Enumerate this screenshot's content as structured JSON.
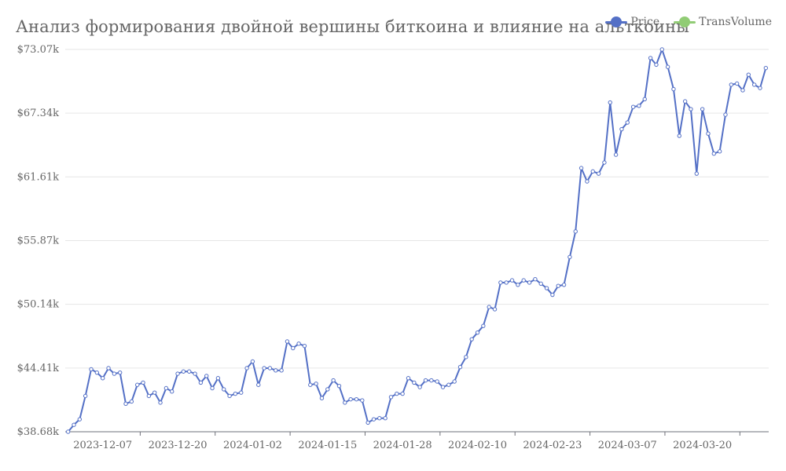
{
  "chart_data": {
    "type": "line",
    "title": "Анализ формирования двойной вершины биткоина и влияние на альткоины",
    "legend": [
      {
        "name": "Price",
        "color": "#5470c6"
      },
      {
        "name": "TransVolume",
        "color": "#91cc75"
      }
    ],
    "legend_position": "top-right",
    "ylim": [
      38680,
      73070
    ],
    "y_ticks": [
      "$38.68k",
      "$44.41k",
      "$50.14k",
      "$55.87k",
      "$61.61k",
      "$67.34k",
      "$73.07k"
    ],
    "x_ticks": [
      "2023-12-07",
      "2023-12-20",
      "2024-01-02",
      "2024-01-15",
      "2024-01-28",
      "2024-02-10",
      "2024-02-23",
      "2024-03-07",
      "2024-03-20"
    ],
    "grid": "horizontal",
    "series": [
      {
        "name": "Price",
        "color": "#5470c6",
        "values": [
          38680,
          39300,
          39800,
          41900,
          44300,
          44000,
          43500,
          44400,
          43900,
          44000,
          41200,
          41400,
          42900,
          43100,
          41900,
          42200,
          41300,
          42600,
          42300,
          43900,
          44100,
          44100,
          43900,
          43100,
          43700,
          42600,
          43500,
          42500,
          41900,
          42100,
          42200,
          44400,
          45000,
          42900,
          44400,
          44400,
          44200,
          44200,
          46800,
          46200,
          46600,
          46400,
          42900,
          43000,
          41700,
          42500,
          43300,
          42800,
          41300,
          41600,
          41600,
          41500,
          39500,
          39800,
          39900,
          39900,
          41800,
          42100,
          42100,
          43500,
          43100,
          42700,
          43300,
          43300,
          43200,
          42700,
          42900,
          43200,
          44500,
          45400,
          47000,
          47600,
          48200,
          49900,
          49700,
          52100,
          52100,
          52300,
          51900,
          52300,
          52100,
          52400,
          52000,
          51600,
          51000,
          51800,
          51900,
          54400,
          56700,
          62400,
          61200,
          62100,
          61900,
          62900,
          68300,
          63600,
          65900,
          66500,
          67900,
          68000,
          68600,
          72300,
          71700,
          73070,
          71500,
          69500,
          65300,
          68400,
          67700,
          61900,
          67700,
          65500,
          63700,
          63900,
          67200,
          69900,
          70000,
          69400,
          70800,
          69900,
          69600,
          71400
        ]
      },
      {
        "name": "TransVolume",
        "color": "#91cc75",
        "values": []
      }
    ]
  }
}
